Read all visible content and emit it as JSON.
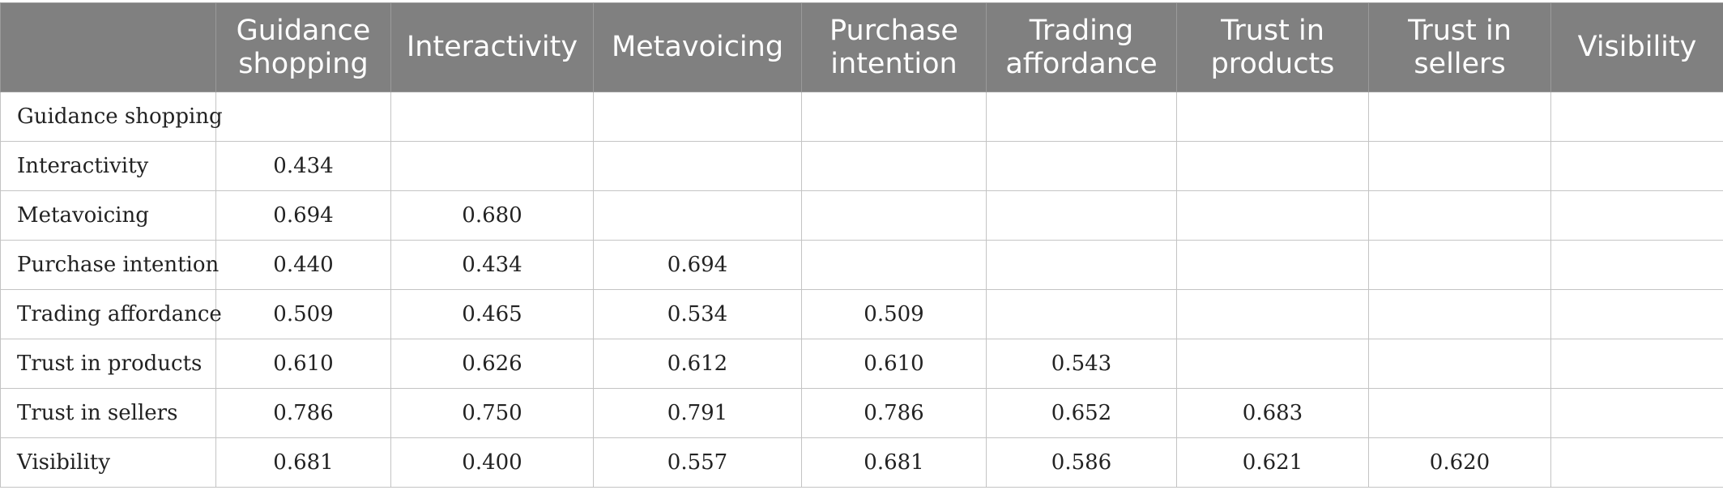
{
  "columns": [
    "",
    "Guidance shopping",
    "Interactivity",
    "Metavoicing",
    "Purchase intention",
    "Trading affordance",
    "Trust in products",
    "Trust in sellers",
    "Visibility"
  ],
  "rows": [
    {
      "label": "Guidance shopping",
      "values": [
        "",
        "",
        "",
        "",
        "",
        "",
        "",
        ""
      ]
    },
    {
      "label": "Interactivity",
      "values": [
        "0.434",
        "",
        "",
        "",
        "",
        "",
        "",
        ""
      ]
    },
    {
      "label": "Metavoicing",
      "values": [
        "0.694",
        "0.680",
        "",
        "",
        "",
        "",
        "",
        ""
      ]
    },
    {
      "label": "Purchase intention",
      "values": [
        "0.440",
        "0.434",
        "0.694",
        "",
        "",
        "",
        "",
        ""
      ]
    },
    {
      "label": "Trading affordance",
      "values": [
        "0.509",
        "0.465",
        "0.534",
        "0.509",
        "",
        "",
        "",
        ""
      ]
    },
    {
      "label": "Trust in products",
      "values": [
        "0.610",
        "0.626",
        "0.612",
        "0.610",
        "0.543",
        "",
        "",
        ""
      ]
    },
    {
      "label": "Trust in sellers",
      "values": [
        "0.786",
        "0.750",
        "0.791",
        "0.786",
        "0.652",
        "0.683",
        "",
        ""
      ]
    },
    {
      "label": "Visibility",
      "values": [
        "0.681",
        "0.400",
        "0.557",
        "0.681",
        "0.586",
        "0.621",
        "0.620",
        ""
      ]
    }
  ],
  "colors": {
    "header_bg": "#808080",
    "header_text": "#ffffff",
    "grid": "#c4c4c4"
  }
}
